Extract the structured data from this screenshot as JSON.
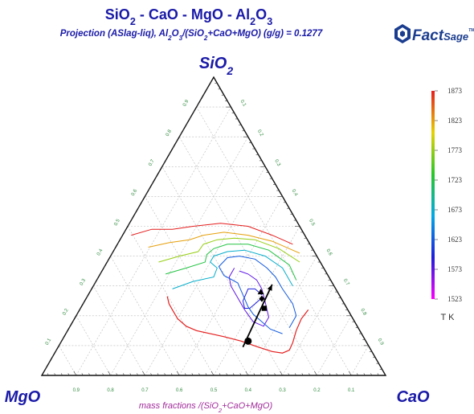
{
  "chart_data": {
    "type": "ternary-contour",
    "title": {
      "segments": [
        {
          "t": "SiO",
          "s": false
        },
        {
          "t": "2",
          "s": true
        },
        {
          "t": " - CaO - MgO - Al",
          "s": false
        },
        {
          "t": "2",
          "s": true
        },
        {
          "t": "O",
          "s": false
        },
        {
          "t": "3",
          "s": true
        }
      ]
    },
    "subtitle": {
      "segments": [
        {
          "t": "Projection (ASlag-liq),  Al",
          "s": false
        },
        {
          "t": "2",
          "s": true
        },
        {
          "t": "O",
          "s": false
        },
        {
          "t": "3",
          "s": true
        },
        {
          "t": "/(SiO",
          "s": false
        },
        {
          "t": "2",
          "s": true
        },
        {
          "t": "+CaO+MgO) (g/g)  = 0.1277",
          "s": false
        }
      ]
    },
    "apex_top": {
      "segments": [
        {
          "t": "SiO",
          "s": false
        },
        {
          "t": "2",
          "s": true
        }
      ]
    },
    "apex_left": "MgO",
    "apex_right": "CaO",
    "xlabel": {
      "segments": [
        {
          "t": "mass fractions /(SiO",
          "s": false
        },
        {
          "t": "2",
          "s": true
        },
        {
          "t": "+CaO+MgO)",
          "s": false
        }
      ]
    },
    "tick_values": [
      "0.1",
      "0.2",
      "0.3",
      "0.4",
      "0.5",
      "0.6",
      "0.7",
      "0.8",
      "0.9"
    ],
    "colorbar": {
      "unit": "T K",
      "ticks": [
        1873,
        1823,
        1773,
        1723,
        1673,
        1623,
        1573,
        1523
      ],
      "min": 1523,
      "max": 1873
    },
    "isotherms": [
      {
        "T": 1573,
        "points": [
          [
            0.56,
            0.36
          ],
          [
            0.545,
            0.33
          ],
          [
            0.55,
            0.3
          ],
          [
            0.575,
            0.25
          ],
          [
            0.59,
            0.22
          ],
          [
            0.615,
            0.18
          ],
          [
            0.645,
            0.165
          ],
          [
            0.66,
            0.195
          ],
          [
            0.65,
            0.245
          ],
          [
            0.64,
            0.29
          ],
          [
            0.625,
            0.32
          ],
          [
            0.6,
            0.34
          ],
          [
            0.575,
            0.35
          ]
        ]
      },
      {
        "T": 1593,
        "points": [
          [
            0.64,
            0.26
          ],
          [
            0.62,
            0.24
          ],
          [
            0.605,
            0.225
          ],
          [
            0.59,
            0.225
          ],
          [
            0.585,
            0.25
          ],
          [
            0.6,
            0.29
          ],
          [
            0.62,
            0.29
          ],
          [
            0.64,
            0.27
          ]
        ]
      },
      {
        "T": 1623,
        "points": [
          [
            0.7,
            0.14
          ],
          [
            0.665,
            0.155
          ],
          [
            0.64,
            0.18
          ],
          [
            0.615,
            0.205
          ],
          [
            0.6,
            0.23
          ],
          [
            0.585,
            0.27
          ],
          [
            0.57,
            0.31
          ],
          [
            0.53,
            0.335
          ],
          [
            0.515,
            0.365
          ],
          [
            0.54,
            0.395
          ],
          [
            0.575,
            0.4
          ],
          [
            0.62,
            0.39
          ],
          [
            0.655,
            0.36
          ],
          [
            0.68,
            0.33
          ],
          [
            0.7,
            0.29
          ],
          [
            0.73,
            0.24
          ],
          [
            0.74,
            0.2
          ],
          [
            0.72,
            0.16
          ]
        ]
      },
      {
        "T": 1673,
        "points": [
          [
            0.38,
            0.29
          ],
          [
            0.44,
            0.315
          ],
          [
            0.5,
            0.33
          ],
          [
            0.51,
            0.36
          ],
          [
            0.49,
            0.38
          ],
          [
            0.5,
            0.4
          ],
          [
            0.54,
            0.415
          ],
          [
            0.59,
            0.42
          ],
          [
            0.65,
            0.4
          ],
          [
            0.7,
            0.36
          ],
          [
            0.73,
            0.3
          ]
        ]
      },
      {
        "T": 1723,
        "points": [
          [
            0.36,
            0.34
          ],
          [
            0.42,
            0.36
          ],
          [
            0.475,
            0.38
          ],
          [
            0.48,
            0.405
          ],
          [
            0.5,
            0.425
          ],
          [
            0.54,
            0.44
          ],
          [
            0.6,
            0.44
          ],
          [
            0.66,
            0.42
          ],
          [
            0.72,
            0.37
          ],
          [
            0.74,
            0.32
          ]
        ]
      },
      {
        "T": 1773,
        "points": [
          [
            0.34,
            0.38
          ],
          [
            0.4,
            0.4
          ],
          [
            0.455,
            0.415
          ],
          [
            0.47,
            0.44
          ],
          [
            0.51,
            0.455
          ],
          [
            0.56,
            0.46
          ],
          [
            0.62,
            0.455
          ],
          [
            0.69,
            0.425
          ],
          [
            0.75,
            0.38
          ]
        ]
      },
      {
        "T": 1823,
        "points": [
          [
            0.31,
            0.43
          ],
          [
            0.37,
            0.445
          ],
          [
            0.43,
            0.455
          ],
          [
            0.47,
            0.47
          ],
          [
            0.53,
            0.48
          ],
          [
            0.6,
            0.47
          ],
          [
            0.67,
            0.45
          ],
          [
            0.75,
            0.41
          ]
        ]
      },
      {
        "T": 1873,
        "points": [
          [
            0.26,
            0.47
          ],
          [
            0.32,
            0.49
          ],
          [
            0.38,
            0.49
          ],
          [
            0.44,
            0.5
          ],
          [
            0.52,
            0.51
          ],
          [
            0.6,
            0.5
          ],
          [
            0.67,
            0.47
          ],
          [
            0.73,
            0.44
          ]
        ]
      }
    ],
    "boundary": {
      "T": 1873,
      "points": [
        [
          0.365,
          0.265
        ],
        [
          0.37,
          0.24
        ],
        [
          0.38,
          0.22
        ],
        [
          0.395,
          0.19
        ],
        [
          0.42,
          0.165
        ],
        [
          0.45,
          0.15
        ],
        [
          0.49,
          0.14
        ],
        [
          0.53,
          0.13
        ],
        [
          0.58,
          0.115
        ],
        [
          0.63,
          0.095
        ],
        [
          0.67,
          0.08
        ],
        [
          0.7,
          0.075
        ],
        [
          0.72,
          0.085
        ],
        [
          0.73,
          0.11
        ],
        [
          0.74,
          0.15
        ],
        [
          0.755,
          0.19
        ],
        [
          0.775,
          0.22
        ]
      ]
    },
    "composition_path": [
      [
        0.67,
        0.305
      ],
      [
        0.585,
        0.095
      ]
    ],
    "markers": [
      {
        "shape": "triangle",
        "x": 0.637,
        "y": 0.28
      },
      {
        "shape": "diamond",
        "x": 0.64,
        "y": 0.257
      },
      {
        "shape": "square",
        "x": 0.647,
        "y": 0.225
      },
      {
        "shape": "circle",
        "x": 0.6,
        "y": 0.115
      }
    ]
  },
  "logo": {
    "part1": "Fact",
    "part2": "Sage",
    "mark": "TM",
    "icon": "factsage-logo-icon"
  }
}
